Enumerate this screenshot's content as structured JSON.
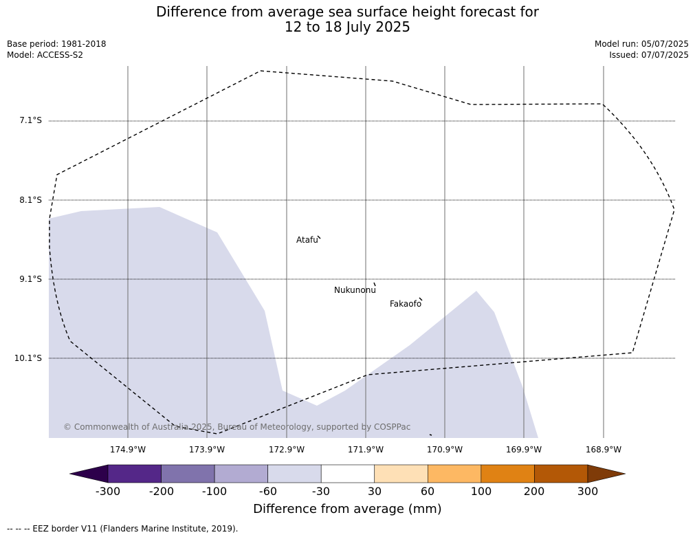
{
  "title_line1": "Difference from average sea surface height forecast for",
  "title_line2": "12 to 18 July 2025",
  "meta_left": {
    "base_period": "Base period: 1981-2018",
    "model": "Model: ACCESS-S2"
  },
  "meta_right": {
    "model_run": "Model run: 05/07/2025",
    "issued": "Issued: 07/07/2025"
  },
  "lat_labels": [
    "7.1°S",
    "8.1°S",
    "9.1°S",
    "10.1°S"
  ],
  "lon_labels": [
    "174.9°W",
    "173.9°W",
    "172.9°W",
    "171.9°W",
    "170.9°W",
    "169.9°W",
    "168.9°W"
  ],
  "islands": [
    "Atafu",
    "Nukunonu",
    "Fakaofo"
  ],
  "copyright": "© Commonwealth of Australia 2025, Bureau of Meteorology, supported by COSPPac",
  "colorbar": {
    "ticks": [
      "-300",
      "-200",
      "-100",
      "-60",
      "-30",
      "30",
      "60",
      "100",
      "200",
      "300"
    ],
    "colors": [
      "#2d004b",
      "#542788",
      "#8073ac",
      "#b2abd2",
      "#d8daeb",
      "#ffffff",
      "#fee0b6",
      "#fdb863",
      "#e08214",
      "#b35806",
      "#7f3b08"
    ],
    "title": "Difference from average (mm)"
  },
  "map_fill_color": "#d8daeb",
  "footnote": "-- -- -- EEZ border V11 (Flanders Marine Institute, 2019)."
}
